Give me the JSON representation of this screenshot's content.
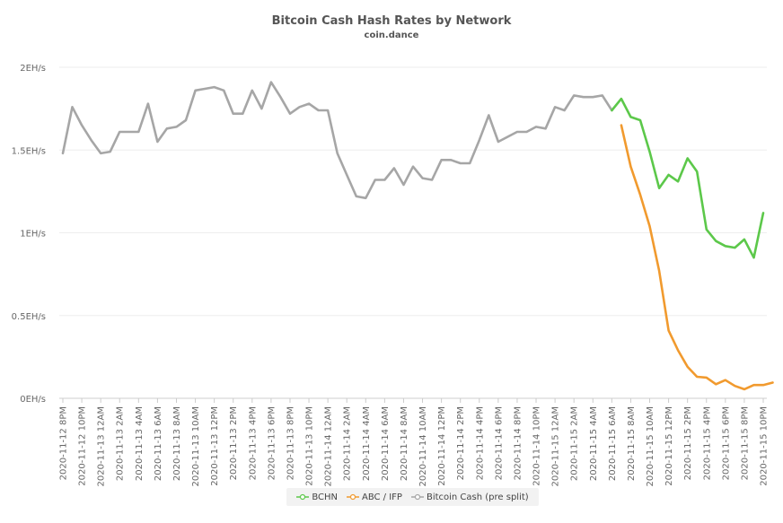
{
  "chart_data": {
    "type": "line",
    "title": "Bitcoin Cash Hash Rates by Network",
    "subtitle": "coin.dance",
    "xlabel": "",
    "ylabel": "",
    "ylim": [
      0,
      2
    ],
    "y_ticks": [
      {
        "value": 0,
        "label": "0EH/s"
      },
      {
        "value": 0.5,
        "label": "0.5EH/s"
      },
      {
        "value": 1,
        "label": "1EH/s"
      },
      {
        "value": 1.5,
        "label": "1.5EH/s"
      },
      {
        "value": 2,
        "label": "2EH/s"
      }
    ],
    "x_tick_labels": [
      "2020-11-12 8PM",
      "2020-11-12 10PM",
      "2020-11-13 12AM",
      "2020-11-13 2AM",
      "2020-11-13 4AM",
      "2020-11-13 6AM",
      "2020-11-13 8AM",
      "2020-11-13 10AM",
      "2020-11-13 12PM",
      "2020-11-13 2PM",
      "2020-11-13 4PM",
      "2020-11-13 6PM",
      "2020-11-13 8PM",
      "2020-11-13 10PM",
      "2020-11-14 12AM",
      "2020-11-14 2AM",
      "2020-11-14 4AM",
      "2020-11-14 6AM",
      "2020-11-14 8AM",
      "2020-11-14 10AM",
      "2020-11-14 12PM",
      "2020-11-14 2PM",
      "2020-11-14 4PM",
      "2020-11-14 6PM",
      "2020-11-14 8PM",
      "2020-11-14 10PM",
      "2020-11-15 12AM",
      "2020-11-15 2AM",
      "2020-11-15 4AM",
      "2020-11-15 6AM",
      "2020-11-15 8AM",
      "2020-11-15 10AM",
      "2020-11-15 12PM",
      "2020-11-15 2PM",
      "2020-11-15 4PM",
      "2020-11-15 6PM",
      "2020-11-15 8PM",
      "2020-11-15 10PM"
    ],
    "series": [
      {
        "name": "BCHN",
        "color": "#5cc84a",
        "start_index": 58,
        "values": [
          1.74,
          1.81,
          1.7,
          1.68,
          1.49,
          1.27,
          1.35,
          1.31,
          1.45,
          1.37,
          1.02,
          0.95,
          0.92,
          0.91,
          0.96,
          0.85,
          1.12
        ]
      },
      {
        "name": "ABC / IFP",
        "color": "#f19a2e",
        "start_index": 59,
        "values": [
          1.65,
          1.4,
          1.23,
          1.04,
          0.77,
          0.41,
          0.29,
          0.19,
          0.13,
          0.125,
          0.085,
          0.11,
          0.075,
          0.055,
          0.08,
          0.08,
          0.095
        ]
      },
      {
        "name": "Bitcoin Cash (pre split)",
        "color": "#a6a6a6",
        "start_index": 0,
        "values": [
          1.48,
          1.76,
          1.65,
          1.56,
          1.48,
          1.49,
          1.61,
          1.61,
          1.61,
          1.78,
          1.55,
          1.63,
          1.64,
          1.68,
          1.86,
          1.87,
          1.88,
          1.86,
          1.72,
          1.72,
          1.86,
          1.75,
          1.91,
          1.82,
          1.72,
          1.76,
          1.78,
          1.74,
          1.74,
          1.48,
          1.35,
          1.22,
          1.21,
          1.32,
          1.32,
          1.39,
          1.29,
          1.4,
          1.33,
          1.32,
          1.44,
          1.44,
          1.42,
          1.42,
          1.56,
          1.71,
          1.55,
          1.58,
          1.61,
          1.61,
          1.64,
          1.63,
          1.76,
          1.74,
          1.83,
          1.82,
          1.82,
          1.83,
          1.74
        ]
      }
    ],
    "legend_position": "bottom-center",
    "grid": true
  }
}
